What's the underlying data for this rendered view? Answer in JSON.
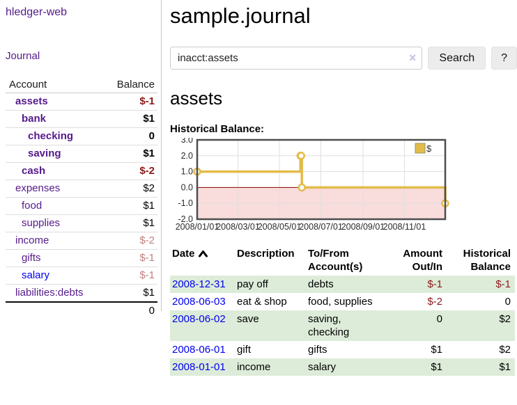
{
  "app": {
    "title": "hledger-web"
  },
  "colors": {
    "visited_link_purple": "#551a8b",
    "link_blue": "#0000ee",
    "negative_strong": "#8b1a1a",
    "negative_dim": "#c08080",
    "row_highlight_green": "#ddecd9"
  },
  "sidebar": {
    "journal_link": "Journal",
    "accounts": {
      "header_account": "Account",
      "header_balance": "Balance",
      "rows": [
        {
          "account": "assets",
          "balance": "$-1",
          "indent": 0,
          "bold": true,
          "neg": "strong"
        },
        {
          "account": "bank",
          "balance": "$1",
          "indent": 1,
          "bold": true,
          "neg": "none"
        },
        {
          "account": "checking",
          "balance": "0",
          "indent": 2,
          "bold": true,
          "neg": "none"
        },
        {
          "account": "saving",
          "balance": "$1",
          "indent": 2,
          "bold": true,
          "neg": "none"
        },
        {
          "account": "cash",
          "balance": "$-2",
          "indent": 1,
          "bold": true,
          "neg": "strong"
        },
        {
          "account": "expenses",
          "balance": "$2",
          "indent": 0,
          "bold": false,
          "neg": "none"
        },
        {
          "account": "food",
          "balance": "$1",
          "indent": 1,
          "bold": false,
          "neg": "none"
        },
        {
          "account": "supplies",
          "balance": "$1",
          "indent": 1,
          "bold": false,
          "neg": "none"
        },
        {
          "account": "income",
          "balance": "$-2",
          "indent": 0,
          "bold": false,
          "neg": "dim"
        },
        {
          "account": "gifts",
          "balance": "$-1",
          "indent": 1,
          "bold": false,
          "neg": "dim"
        },
        {
          "account": "salary",
          "balance": "$-1",
          "indent": 1,
          "bold": false,
          "neg": "dim",
          "link": "blue"
        },
        {
          "account": "liabilities:debts",
          "balance": "$1",
          "indent": 0,
          "bold": false,
          "neg": "none"
        }
      ],
      "total": "0"
    }
  },
  "main": {
    "title": "sample.journal",
    "search": {
      "value": "inacct:assets",
      "clear_icon": "×",
      "button_label": "Search",
      "help_label": "?"
    },
    "section_title": "assets",
    "chart_label": "Historical Balance:"
  },
  "chart_data": {
    "type": "line",
    "step": true,
    "title": "Historical Balance",
    "series": [
      {
        "name": "$",
        "points": [
          {
            "x": "2008-01-01",
            "y": 1
          },
          {
            "x": "2008-06-01",
            "y": 2
          },
          {
            "x": "2008-06-02",
            "y": 2
          },
          {
            "x": "2008-06-03",
            "y": 0
          },
          {
            "x": "2008-12-31",
            "y": -1
          }
        ]
      }
    ],
    "x_range": [
      "2008-01-01",
      "2008-12-31"
    ],
    "x_tick_labels": [
      "2008/01/01",
      "2008/03/01",
      "2008/05/01",
      "2008/07/01",
      "2008/09/01",
      "2008/11/01"
    ],
    "y_ticks": [
      3.0,
      2.0,
      1.0,
      0.0,
      -1.0,
      -2.0
    ],
    "ylim": [
      -2,
      3
    ],
    "grid": true,
    "legend": {
      "label": "$",
      "position": "top-right"
    },
    "styles": {
      "line_color": "#e3bb49",
      "marker_fill": "#ffffff",
      "negative_fill": "#f9dcdc",
      "zero_line": "#8b0000",
      "grid_color": "#dfdfdf",
      "border": "#4d4d4d",
      "legend_border": "#9a9466"
    }
  },
  "register": {
    "headers": [
      "Date",
      "Description",
      "To/From Account(s)",
      "Amount Out/In",
      "Historical Balance"
    ],
    "rows": [
      {
        "date": "2008-12-31",
        "description": "pay off",
        "accounts": "debts",
        "amount": "$-1",
        "balance": "$-1",
        "amount_neg": true,
        "balance_neg": true,
        "shade": true
      },
      {
        "date": "2008-06-03",
        "description": "eat & shop",
        "accounts": "food, supplies",
        "amount": "$-2",
        "balance": "0",
        "amount_neg": true,
        "balance_neg": false,
        "shade": false
      },
      {
        "date": "2008-06-02",
        "description": "save",
        "accounts": "saving, checking",
        "amount": "0",
        "balance": "$2",
        "amount_neg": false,
        "balance_neg": false,
        "shade": true
      },
      {
        "date": "2008-06-01",
        "description": "gift",
        "accounts": "gifts",
        "amount": "$1",
        "balance": "$2",
        "amount_neg": false,
        "balance_neg": false,
        "shade": false
      },
      {
        "date": "2008-01-01",
        "description": "income",
        "accounts": "salary",
        "amount": "$1",
        "balance": "$1",
        "amount_neg": false,
        "balance_neg": false,
        "shade": true
      }
    ]
  }
}
